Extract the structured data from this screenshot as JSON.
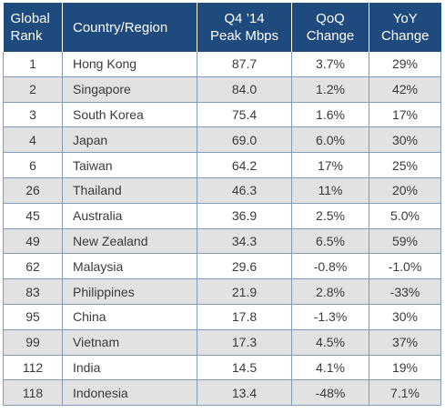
{
  "header": {
    "rank": [
      "Global",
      "Rank"
    ],
    "country": "Country/Region",
    "peak": [
      "Q4 ’14",
      "Peak Mbps"
    ],
    "qoq": [
      "QoQ",
      "Change"
    ],
    "yoy": [
      "YoY",
      "Change"
    ]
  },
  "rows": [
    {
      "rank": "1",
      "country": "Hong Kong",
      "peak": "87.7",
      "qoq": "3.7%",
      "yoy": "29%"
    },
    {
      "rank": "2",
      "country": "Singapore",
      "peak": "84.0",
      "qoq": "1.2%",
      "yoy": "42%"
    },
    {
      "rank": "3",
      "country": "South Korea",
      "peak": "75.4",
      "qoq": "1.6%",
      "yoy": "17%"
    },
    {
      "rank": "4",
      "country": "Japan",
      "peak": "69.0",
      "qoq": "6.0%",
      "yoy": "30%"
    },
    {
      "rank": "6",
      "country": "Taiwan",
      "peak": "64.2",
      "qoq": "17%",
      "yoy": "25%"
    },
    {
      "rank": "26",
      "country": "Thailand",
      "peak": "46.3",
      "qoq": "11%",
      "yoy": "20%"
    },
    {
      "rank": "45",
      "country": "Australia",
      "peak": "36.9",
      "qoq": "2.5%",
      "yoy": "5.0%"
    },
    {
      "rank": "49",
      "country": "New Zealand",
      "peak": "34.3",
      "qoq": "6.5%",
      "yoy": "59%"
    },
    {
      "rank": "62",
      "country": "Malaysia",
      "peak": "29.6",
      "qoq": "-0.8%",
      "yoy": "-1.0%"
    },
    {
      "rank": "83",
      "country": "Philippines",
      "peak": "21.9",
      "qoq": "2.8%",
      "yoy": "-33%"
    },
    {
      "rank": "95",
      "country": "China",
      "peak": "17.8",
      "qoq": "-1.3%",
      "yoy": "30%"
    },
    {
      "rank": "99",
      "country": "Vietnam",
      "peak": "17.3",
      "qoq": "4.5%",
      "yoy": "37%"
    },
    {
      "rank": "112",
      "country": "India",
      "peak": "14.5",
      "qoq": "4.1%",
      "yoy": "19%"
    },
    {
      "rank": "118",
      "country": "Indonesia",
      "peak": "13.4",
      "qoq": "-48%",
      "yoy": "7.1%"
    }
  ],
  "colors": {
    "header_bg": "#1f4a7d",
    "stripe_bg": "#e2e2e2",
    "border": "#7f9bb8"
  }
}
